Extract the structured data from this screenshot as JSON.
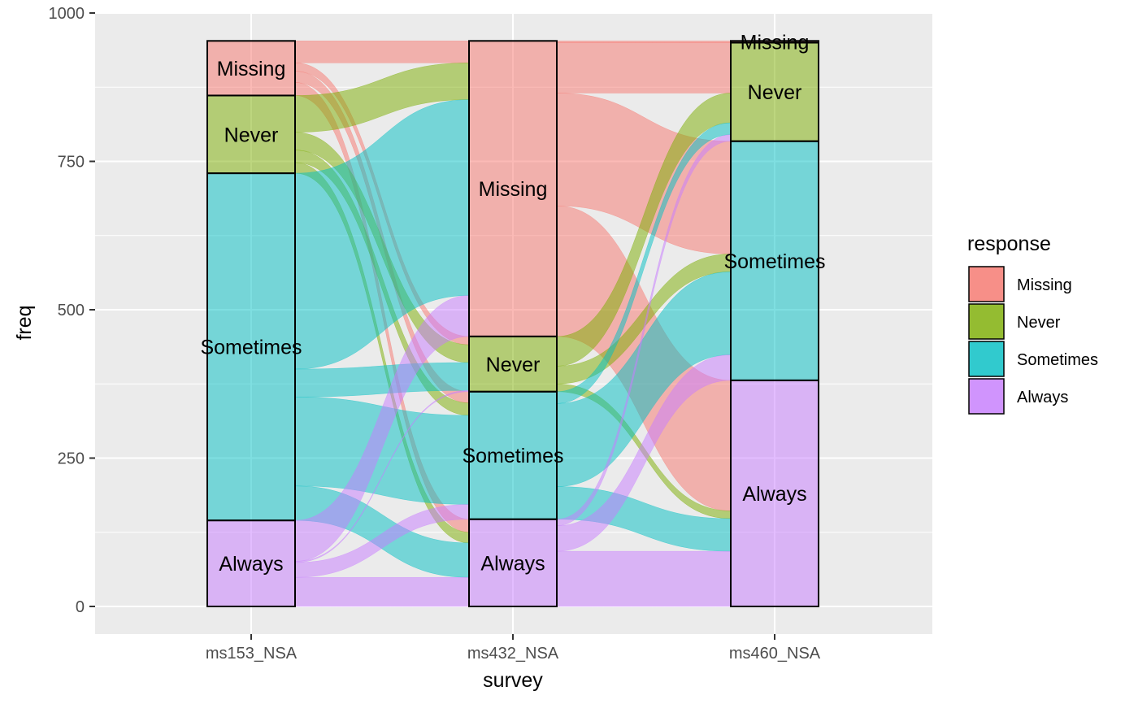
{
  "chart_data": {
    "type": "alluvial",
    "xlabel": "survey",
    "ylabel": "freq",
    "ylim": [
      0,
      1000
    ],
    "y_ticks": [
      0,
      250,
      500,
      750,
      1000
    ],
    "axes": [
      "ms153_NSA",
      "ms432_NSA",
      "ms460_NSA"
    ],
    "categories": [
      "Missing",
      "Never",
      "Sometimes",
      "Always"
    ],
    "colors": {
      "Missing": "#F8766D",
      "Never": "#7CAE00",
      "Sometimes": "#00BFC4",
      "Always": "#C77CFF"
    },
    "legend": {
      "title": "response",
      "position": "right",
      "items": [
        "Missing",
        "Never",
        "Sometimes",
        "Always"
      ]
    },
    "strata": [
      {
        "Missing": 92,
        "Never": 131,
        "Sometimes": 585,
        "Always": 145
      },
      {
        "Missing": 498,
        "Never": 93,
        "Sometimes": 215,
        "Always": 147
      },
      {
        "Missing": 3,
        "Never": 166,
        "Sometimes": 403,
        "Always": 381
      }
    ],
    "flows": [
      {
        "from": [
          0,
          "Missing"
        ],
        "to": [
          1,
          "Missing"
        ],
        "value": 37
      },
      {
        "from": [
          0,
          "Missing"
        ],
        "to": [
          1,
          "Never"
        ],
        "value": 14
      },
      {
        "from": [
          0,
          "Missing"
        ],
        "to": [
          1,
          "Sometimes"
        ],
        "value": 19
      },
      {
        "from": [
          0,
          "Missing"
        ],
        "to": [
          1,
          "Always"
        ],
        "value": 22
      },
      {
        "from": [
          0,
          "Never"
        ],
        "to": [
          1,
          "Missing"
        ],
        "value": 62
      },
      {
        "from": [
          0,
          "Never"
        ],
        "to": [
          1,
          "Never"
        ],
        "value": 30
      },
      {
        "from": [
          0,
          "Never"
        ],
        "to": [
          1,
          "Sometimes"
        ],
        "value": 21
      },
      {
        "from": [
          0,
          "Never"
        ],
        "to": [
          1,
          "Always"
        ],
        "value": 18
      },
      {
        "from": [
          0,
          "Sometimes"
        ],
        "to": [
          1,
          "Missing"
        ],
        "value": 330
      },
      {
        "from": [
          0,
          "Sometimes"
        ],
        "to": [
          1,
          "Never"
        ],
        "value": 47
      },
      {
        "from": [
          0,
          "Sometimes"
        ],
        "to": [
          1,
          "Sometimes"
        ],
        "value": 150
      },
      {
        "from": [
          0,
          "Sometimes"
        ],
        "to": [
          1,
          "Always"
        ],
        "value": 58
      },
      {
        "from": [
          0,
          "Always"
        ],
        "to": [
          1,
          "Missing"
        ],
        "value": 69
      },
      {
        "from": [
          0,
          "Always"
        ],
        "to": [
          1,
          "Never"
        ],
        "value": 2
      },
      {
        "from": [
          0,
          "Always"
        ],
        "to": [
          1,
          "Sometimes"
        ],
        "value": 25
      },
      {
        "from": [
          0,
          "Always"
        ],
        "to": [
          1,
          "Always"
        ],
        "value": 49
      },
      {
        "from": [
          1,
          "Missing"
        ],
        "to": [
          2,
          "Missing"
        ],
        "value": 3
      },
      {
        "from": [
          1,
          "Missing"
        ],
        "to": [
          2,
          "Never"
        ],
        "value": 85
      },
      {
        "from": [
          1,
          "Missing"
        ],
        "to": [
          2,
          "Sometimes"
        ],
        "value": 190
      },
      {
        "from": [
          1,
          "Missing"
        ],
        "to": [
          2,
          "Always"
        ],
        "value": 220
      },
      {
        "from": [
          1,
          "Never"
        ],
        "to": [
          2,
          "Never"
        ],
        "value": 50
      },
      {
        "from": [
          1,
          "Never"
        ],
        "to": [
          2,
          "Sometimes"
        ],
        "value": 30
      },
      {
        "from": [
          1,
          "Never"
        ],
        "to": [
          2,
          "Always"
        ],
        "value": 13
      },
      {
        "from": [
          1,
          "Sometimes"
        ],
        "to": [
          2,
          "Never"
        ],
        "value": 20
      },
      {
        "from": [
          1,
          "Sometimes"
        ],
        "to": [
          2,
          "Sometimes"
        ],
        "value": 140
      },
      {
        "from": [
          1,
          "Sometimes"
        ],
        "to": [
          2,
          "Always"
        ],
        "value": 55
      },
      {
        "from": [
          1,
          "Always"
        ],
        "to": [
          2,
          "Never"
        ],
        "value": 11
      },
      {
        "from": [
          1,
          "Always"
        ],
        "to": [
          2,
          "Sometimes"
        ],
        "value": 43
      },
      {
        "from": [
          1,
          "Always"
        ],
        "to": [
          2,
          "Always"
        ],
        "value": 93
      }
    ]
  }
}
